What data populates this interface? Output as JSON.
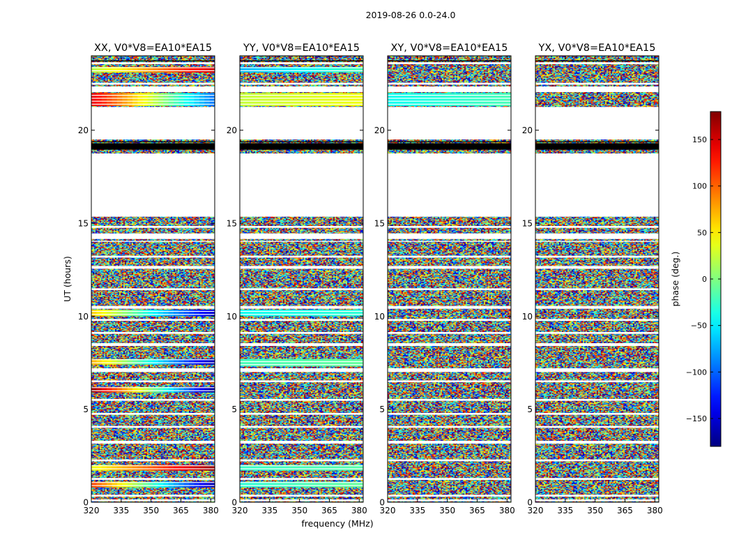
{
  "figure": {
    "suptitle": "2019-08-26 0.0-24.0",
    "xlabel": "frequency (MHz)",
    "ylabel": "UT (hours)"
  },
  "chart_data": {
    "type": "heatmap",
    "description_kind": "waterfall phase plots",
    "xlim": [
      320,
      382
    ],
    "ylim": [
      0,
      24
    ],
    "xticks": [
      320,
      335,
      350,
      365,
      380
    ],
    "yticks": [
      0,
      5,
      10,
      15,
      20
    ],
    "panels": [
      {
        "title": "XX, V0*V8=EA10*EA15",
        "pol": "XX",
        "coherent": [
          {
            "y": [
              23.1,
              23.4
            ],
            "phase_lo": 20,
            "phase_hi": 150
          },
          {
            "y": [
              21.3,
              22.0
            ],
            "phase_lo": 140,
            "phase_hi": -90
          },
          {
            "y": [
              10.0,
              10.35
            ],
            "phase_lo": 60,
            "phase_hi": -150
          },
          {
            "y": [
              7.4,
              7.7
            ],
            "phase_lo": 70,
            "phase_hi": -160
          },
          {
            "y": [
              5.9,
              6.2
            ],
            "phase_lo": 170,
            "phase_hi": -170
          },
          {
            "y": [
              1.7,
              2.0
            ],
            "phase_lo": 40,
            "phase_hi": 170
          },
          {
            "y": [
              0.8,
              1.1
            ],
            "phase_lo": 110,
            "phase_hi": -160
          }
        ]
      },
      {
        "title": "YY, V0*V8=EA10*EA15",
        "pol": "YY",
        "coherent": [
          {
            "y": [
              23.1,
              23.4
            ],
            "phase_lo": -70,
            "phase_hi": -20
          },
          {
            "y": [
              21.3,
              22.0
            ],
            "phase_lo": 25,
            "phase_hi": 40
          },
          {
            "y": [
              10.0,
              10.35
            ],
            "phase_lo": -40,
            "phase_hi": -30
          },
          {
            "y": [
              7.3,
              7.7
            ],
            "phase_lo": -20,
            "phase_hi": -10
          },
          {
            "y": [
              1.7,
              2.0
            ],
            "phase_lo": -25,
            "phase_hi": -15
          },
          {
            "y": [
              0.8,
              1.1
            ],
            "phase_lo": -30,
            "phase_hi": -10
          }
        ]
      },
      {
        "title": "XY, V0*V8=EA10*EA15",
        "pol": "XY",
        "coherent": [
          {
            "y": [
              21.3,
              22.0
            ],
            "phase_lo": -40,
            "phase_hi": -20
          }
        ]
      },
      {
        "title": "YX, V0*V8=EA10*EA15",
        "pol": "YX",
        "coherent": []
      }
    ],
    "blank_ut_ranges": [
      [
        0.05,
        0.15
      ],
      [
        0.3,
        0.4
      ],
      [
        1.2,
        1.3
      ],
      [
        2.2,
        2.3
      ],
      [
        3.15,
        3.3
      ],
      [
        4.0,
        4.1
      ],
      [
        4.7,
        4.8
      ],
      [
        5.45,
        5.55
      ],
      [
        6.45,
        6.55
      ],
      [
        7.0,
        7.2
      ],
      [
        8.4,
        8.55
      ],
      [
        9.05,
        9.15
      ],
      [
        9.75,
        9.85
      ],
      [
        10.4,
        10.55
      ],
      [
        11.4,
        11.5
      ],
      [
        12.55,
        12.7
      ],
      [
        13.15,
        13.25
      ],
      [
        14.0,
        14.05
      ],
      [
        14.15,
        14.45
      ],
      [
        14.75,
        14.85
      ],
      [
        15.35,
        18.75
      ],
      [
        19.5,
        21.25
      ],
      [
        22.05,
        22.35
      ],
      [
        22.45,
        22.55
      ],
      [
        23.55,
        23.65
      ]
    ],
    "flagged_black_ut_ranges": [
      [
        18.95,
        19.3
      ],
      [
        19.35,
        19.4
      ],
      [
        23.7,
        23.75
      ]
    ],
    "colorbar": {
      "label": "phase (deg.)",
      "range": [
        -180,
        180
      ],
      "ticks": [
        150,
        100,
        50,
        0,
        -50,
        -100,
        -150
      ],
      "tick_labels": [
        "150",
        "100",
        "50",
        "0",
        "−50",
        "−100",
        "−150"
      ],
      "colormap": "jet"
    }
  }
}
